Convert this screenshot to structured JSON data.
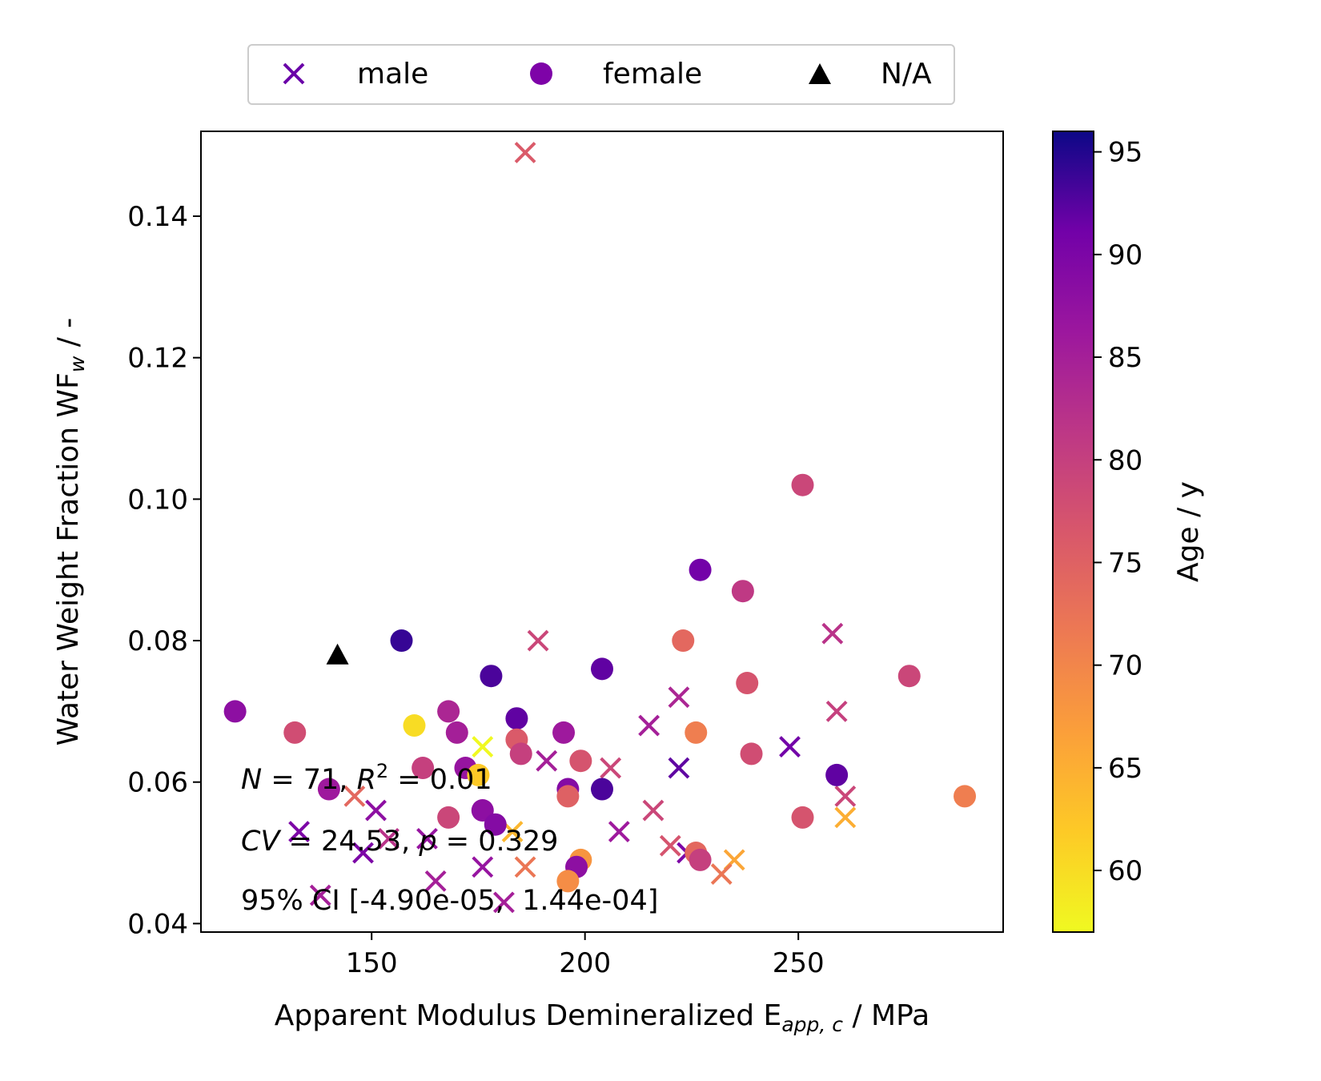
{
  "chart_data": {
    "type": "scatter",
    "xlabel": {
      "main": "Apparent Modulus Demineralized E",
      "sub": "app, c",
      "unit": " / MPa"
    },
    "ylabel": {
      "main": "Water Weight Fraction WF",
      "sub": "w",
      "unit": " / -"
    },
    "xlim": [
      110,
      298
    ],
    "ylim": [
      0.0388,
      0.152
    ],
    "xticks": [
      150,
      200,
      250
    ],
    "xtick_labels": [
      "150",
      "200",
      "250"
    ],
    "yticks": [
      0.04,
      0.06,
      0.08,
      0.1,
      0.12,
      0.14
    ],
    "ytick_labels": [
      "0.04",
      "0.06",
      "0.08",
      "0.10",
      "0.12",
      "0.14"
    ],
    "grid": false,
    "legend": {
      "placement": "top-center, above plot",
      "entries": [
        {
          "label": "male",
          "marker": "x",
          "color": "#6a00a8"
        },
        {
          "label": "female",
          "marker": "circle",
          "color": "#7e03a8"
        },
        {
          "label": "N/A",
          "marker": "triangle",
          "color": "#000000"
        }
      ]
    },
    "colorbar": {
      "label": "Age / y",
      "colormap": "plasma",
      "range": [
        57,
        96
      ],
      "ticks": [
        60,
        65,
        70,
        75,
        80,
        85,
        90,
        95
      ],
      "tick_labels": [
        "60",
        "65",
        "70",
        "75",
        "80",
        "85",
        "90",
        "95"
      ]
    },
    "annotations": {
      "line1": {
        "n_sym": "N",
        "n_text": " = 71, ",
        "r_sym": "R",
        "r_sup": "2",
        "r_text": " = 0.01"
      },
      "line2": {
        "cv_sym": "CV",
        "cv_text": " = 24.53, ",
        "p_sym": "p",
        "p_text": " = 0.329"
      },
      "line3": "95% CI [-4.90e-05,  1.44e-04]"
    },
    "series": [
      {
        "name": "male",
        "marker": "x",
        "points": [
          {
            "x": 186,
            "y": 0.149,
            "age": 76
          },
          {
            "x": 189,
            "y": 0.08,
            "age": 79
          },
          {
            "x": 258,
            "y": 0.081,
            "age": 82
          },
          {
            "x": 222,
            "y": 0.072,
            "age": 84
          },
          {
            "x": 259,
            "y": 0.07,
            "age": 80
          },
          {
            "x": 215,
            "y": 0.068,
            "age": 85
          },
          {
            "x": 248,
            "y": 0.065,
            "age": 91
          },
          {
            "x": 176,
            "y": 0.065,
            "age": 57
          },
          {
            "x": 191,
            "y": 0.063,
            "age": 85
          },
          {
            "x": 206,
            "y": 0.062,
            "age": 79
          },
          {
            "x": 222,
            "y": 0.062,
            "age": 92
          },
          {
            "x": 151,
            "y": 0.056,
            "age": 88
          },
          {
            "x": 216,
            "y": 0.056,
            "age": 79
          },
          {
            "x": 146,
            "y": 0.058,
            "age": 74
          },
          {
            "x": 261,
            "y": 0.058,
            "age": 79
          },
          {
            "x": 261,
            "y": 0.055,
            "age": 65
          },
          {
            "x": 133,
            "y": 0.053,
            "age": 90
          },
          {
            "x": 163,
            "y": 0.052,
            "age": 87
          },
          {
            "x": 208,
            "y": 0.053,
            "age": 86
          },
          {
            "x": 154,
            "y": 0.052,
            "age": 82
          },
          {
            "x": 183,
            "y": 0.053,
            "age": 64
          },
          {
            "x": 148,
            "y": 0.05,
            "age": 90
          },
          {
            "x": 220,
            "y": 0.051,
            "age": 77
          },
          {
            "x": 224,
            "y": 0.05,
            "age": 90
          },
          {
            "x": 235,
            "y": 0.049,
            "age": 66
          },
          {
            "x": 176,
            "y": 0.048,
            "age": 87
          },
          {
            "x": 186,
            "y": 0.048,
            "age": 72
          },
          {
            "x": 165,
            "y": 0.046,
            "age": 85
          },
          {
            "x": 232,
            "y": 0.047,
            "age": 72
          },
          {
            "x": 138,
            "y": 0.044,
            "age": 85
          },
          {
            "x": 181,
            "y": 0.043,
            "age": 85
          }
        ]
      },
      {
        "name": "female",
        "marker": "circle",
        "points": [
          {
            "x": 251,
            "y": 0.102,
            "age": 79
          },
          {
            "x": 227,
            "y": 0.09,
            "age": 91
          },
          {
            "x": 237,
            "y": 0.087,
            "age": 81
          },
          {
            "x": 157,
            "y": 0.08,
            "age": 94
          },
          {
            "x": 223,
            "y": 0.08,
            "age": 74
          },
          {
            "x": 204,
            "y": 0.076,
            "age": 92
          },
          {
            "x": 178,
            "y": 0.075,
            "age": 93
          },
          {
            "x": 276,
            "y": 0.075,
            "age": 79
          },
          {
            "x": 238,
            "y": 0.074,
            "age": 77
          },
          {
            "x": 118,
            "y": 0.07,
            "age": 88
          },
          {
            "x": 168,
            "y": 0.07,
            "age": 84
          },
          {
            "x": 184,
            "y": 0.069,
            "age": 92
          },
          {
            "x": 160,
            "y": 0.068,
            "age": 60
          },
          {
            "x": 132,
            "y": 0.067,
            "age": 78
          },
          {
            "x": 170,
            "y": 0.067,
            "age": 85
          },
          {
            "x": 195,
            "y": 0.067,
            "age": 86
          },
          {
            "x": 226,
            "y": 0.067,
            "age": 71
          },
          {
            "x": 184,
            "y": 0.066,
            "age": 76
          },
          {
            "x": 185,
            "y": 0.064,
            "age": 80
          },
          {
            "x": 239,
            "y": 0.064,
            "age": 78
          },
          {
            "x": 199,
            "y": 0.063,
            "age": 77
          },
          {
            "x": 162,
            "y": 0.062,
            "age": 80
          },
          {
            "x": 172,
            "y": 0.062,
            "age": 87
          },
          {
            "x": 175,
            "y": 0.061,
            "age": 62
          },
          {
            "x": 259,
            "y": 0.061,
            "age": 92
          },
          {
            "x": 140,
            "y": 0.059,
            "age": 86
          },
          {
            "x": 196,
            "y": 0.059,
            "age": 89
          },
          {
            "x": 204,
            "y": 0.059,
            "age": 93
          },
          {
            "x": 196,
            "y": 0.058,
            "age": 75
          },
          {
            "x": 289,
            "y": 0.058,
            "age": 71
          },
          {
            "x": 176,
            "y": 0.056,
            "age": 88
          },
          {
            "x": 168,
            "y": 0.055,
            "age": 79
          },
          {
            "x": 251,
            "y": 0.055,
            "age": 77
          },
          {
            "x": 179,
            "y": 0.054,
            "age": 89
          },
          {
            "x": 226,
            "y": 0.05,
            "age": 74
          },
          {
            "x": 227,
            "y": 0.049,
            "age": 80
          },
          {
            "x": 199,
            "y": 0.049,
            "age": 68
          },
          {
            "x": 198,
            "y": 0.048,
            "age": 88
          },
          {
            "x": 196,
            "y": 0.046,
            "age": 69
          }
        ]
      },
      {
        "name": "N/A",
        "marker": "triangle",
        "points": [
          {
            "x": 142,
            "y": 0.078,
            "age": null
          }
        ]
      }
    ]
  }
}
